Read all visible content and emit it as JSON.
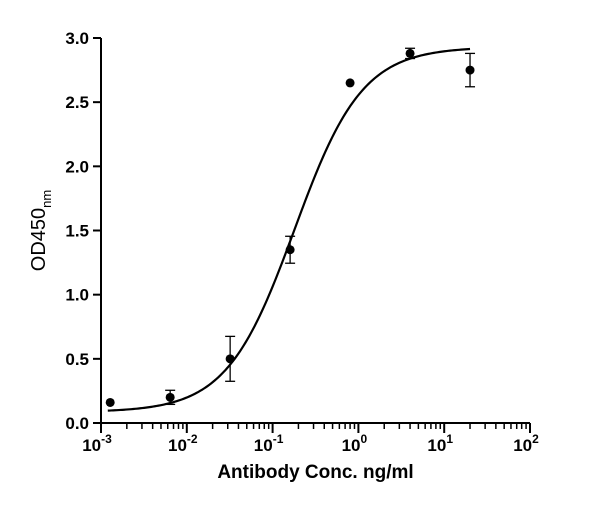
{
  "chart_data": {
    "type": "scatter",
    "xlabel": "Antibody Conc. ng/ml",
    "ylabel": {
      "main": "OD450",
      "subscript": "nm"
    },
    "x_scale": "log10",
    "xlim": [
      0.001,
      100
    ],
    "ylim": [
      0,
      3.0
    ],
    "x_ticks": [
      {
        "base": "10",
        "exp": "-3"
      },
      {
        "base": "10",
        "exp": "-2"
      },
      {
        "base": "10",
        "exp": "-1"
      },
      {
        "base": "10",
        "exp": "0"
      },
      {
        "base": "10",
        "exp": "1"
      },
      {
        "base": "10",
        "exp": "2"
      }
    ],
    "y_ticks": [
      "0.0",
      "0.5",
      "1.0",
      "1.5",
      "2.0",
      "2.5",
      "3.0"
    ],
    "grid": false,
    "legend": "none",
    "series": [
      {
        "points": [
          {
            "x": 0.00128,
            "y": 0.16,
            "err": 0
          },
          {
            "x": 0.0064,
            "y": 0.2,
            "err": 0.055
          },
          {
            "x": 0.032,
            "y": 0.5,
            "err": 0.175
          },
          {
            "x": 0.16,
            "y": 1.35,
            "err": 0.105
          },
          {
            "x": 0.8,
            "y": 2.65,
            "err": 0
          },
          {
            "x": 4.0,
            "y": 2.88,
            "err": 0.04
          },
          {
            "x": 20.0,
            "y": 2.75,
            "err": 0.13
          }
        ],
        "fit": {
          "model": "4PL",
          "bottom": 0.085,
          "top": 2.93,
          "ec50": 0.18,
          "hill": 1.1,
          "x_range": [
            0.0012,
            20
          ]
        }
      }
    ],
    "colors": {
      "marker": "#000000",
      "axis": "#000000",
      "curve": "#000000"
    }
  }
}
